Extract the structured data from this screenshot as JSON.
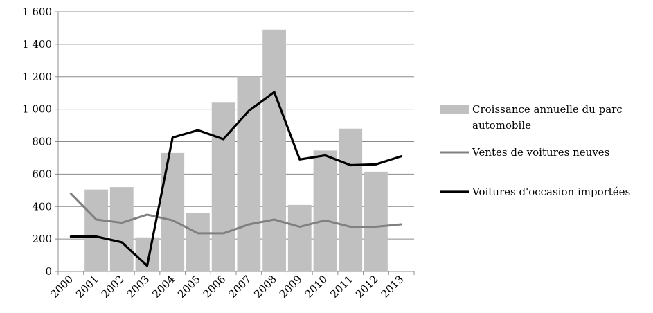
{
  "chart_data": {
    "type": "bar",
    "categories": [
      "2000",
      "2001",
      "2002",
      "2003",
      "2004",
      "2005",
      "2006",
      "2007",
      "2008",
      "2009",
      "2010",
      "2011",
      "2012",
      "2013"
    ],
    "ylim": [
      0,
      1600
    ],
    "yticks": [
      0,
      200,
      400,
      600,
      800,
      1000,
      1200,
      1400,
      1600
    ],
    "ytick_labels": [
      "0",
      "200",
      "400",
      "600",
      "800",
      "1 000",
      "1 200",
      "1 400",
      "1 600"
    ],
    "grid": true,
    "legend_position": "right",
    "series": [
      {
        "name": "Croissance annuelle du parc automobile",
        "name_lines": [
          "Croissance annuelle du parc",
          "automobile"
        ],
        "kind": "bar",
        "color": "#c0c0c0",
        "values": [
          null,
          505,
          520,
          210,
          730,
          360,
          1040,
          1200,
          1490,
          410,
          745,
          880,
          615,
          null
        ]
      },
      {
        "name": "Ventes de voitures neuves",
        "kind": "line",
        "color": "#808080",
        "values": [
          480,
          320,
          300,
          350,
          315,
          235,
          235,
          290,
          320,
          275,
          315,
          275,
          275,
          290
        ]
      },
      {
        "name": "Voitures d'occasion importées",
        "kind": "line",
        "color": "#000000",
        "values": [
          215,
          215,
          180,
          35,
          825,
          870,
          815,
          990,
          1105,
          690,
          715,
          655,
          660,
          710
        ]
      }
    ]
  }
}
